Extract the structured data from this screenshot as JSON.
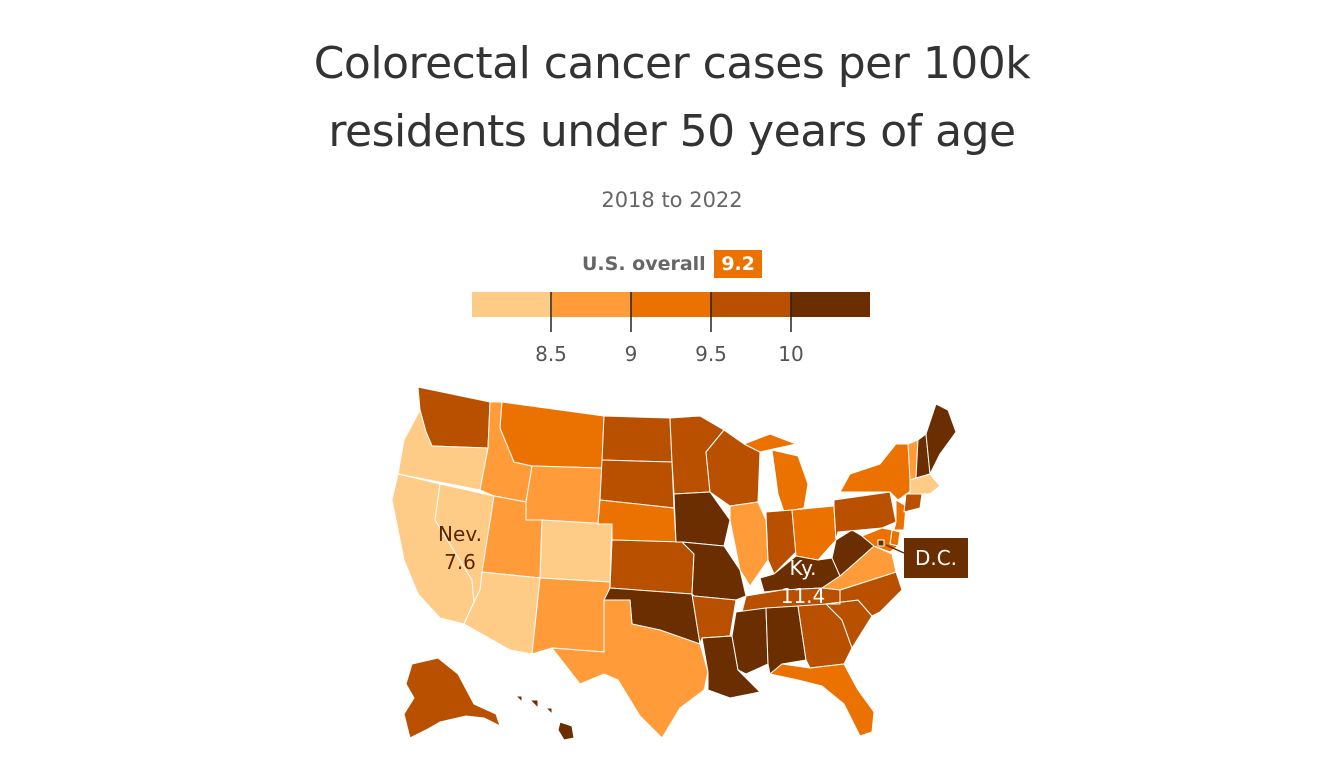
{
  "title": {
    "line1": "Colorectal cancer cases per 100k",
    "line2": "residents under 50 years of age"
  },
  "subtitle": "2018 to 2022",
  "overall": {
    "label": "U.S. overall",
    "value": "9.2",
    "color": "#eb7100"
  },
  "legend": {
    "bins": [
      {
        "color": "#ffcc88",
        "min": null,
        "max": 8.5
      },
      {
        "color": "#ff9b38",
        "min": 8.5,
        "max": 9
      },
      {
        "color": "#eb7100",
        "min": 9,
        "max": 9.5
      },
      {
        "color": "#b85000",
        "min": 9.5,
        "max": 10
      },
      {
        "color": "#6b2e00",
        "min": 10,
        "max": null
      }
    ],
    "ticks": [
      "8.5",
      "9",
      "9.5",
      "10"
    ]
  },
  "labels": {
    "nevada": {
      "name": "Nev.",
      "value": "7.6"
    },
    "kentucky": {
      "name": "Ky.",
      "value": "11.4"
    },
    "dc": {
      "name": "D.C."
    }
  },
  "states": {
    "WA": "#b85000",
    "OR": "#ffcc88",
    "CA": "#ffcc88",
    "NV": "#ffcc88",
    "ID": "#ff9b38",
    "MT": "#eb7100",
    "WY": "#ff9b38",
    "UT": "#ff9b38",
    "AZ": "#ffcc88",
    "CO": "#ffcc88",
    "NM": "#ff9b38",
    "ND": "#b85000",
    "SD": "#b85000",
    "NE": "#eb7100",
    "KS": "#b85000",
    "OK": "#6b2e00",
    "TX": "#ff9b38",
    "MN": "#b85000",
    "IA": "#6b2e00",
    "MO": "#6b2e00",
    "AR": "#b85000",
    "LA": "#6b2e00",
    "WI": "#b85000",
    "IL": "#ff9b38",
    "MI": "#eb7100",
    "IN": "#b85000",
    "OH": "#eb7100",
    "KY": "#6b2e00",
    "TN": "#b85000",
    "MS": "#6b2e00",
    "AL": "#6b2e00",
    "GA": "#b85000",
    "FL": "#eb7100",
    "SC": "#b85000",
    "NC": "#b85000",
    "VA": "#ff9b38",
    "WV": "#6b2e00",
    "PA": "#b85000",
    "NY": "#eb7100",
    "NJ": "#eb7100",
    "VT": "#ff9b38",
    "NH": "#6b2e00",
    "ME": "#6b2e00",
    "MA": "#ffcc88",
    "CT": "#b85000",
    "DE": "#eb7100",
    "MD": "#eb7100",
    "DC": "#6b2e00",
    "AK": "#b85000",
    "HI": "#6b2e00"
  }
}
